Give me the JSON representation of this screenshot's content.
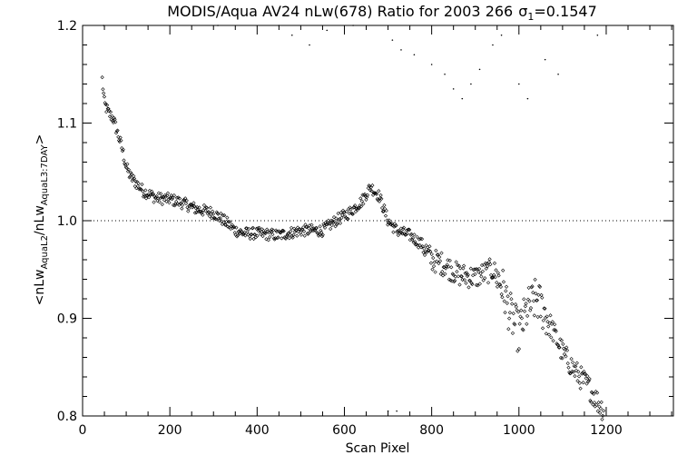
{
  "chart_data": {
    "type": "scatter",
    "title": "MODIS/Aqua AV24 nLw(678) Ratio for 2003 266",
    "title_sigma_label": "σ",
    "title_sigma_sub": "1",
    "title_sigma_value": "=0.1547",
    "xlabel": "Scan Pixel",
    "ylabel": {
      "pre": "<nLw",
      "sub1": "AquaL2",
      "mid": "/nLw",
      "sub2": "AquaL3:7DAY",
      "post": ">"
    },
    "xlim": [
      0,
      1354
    ],
    "ylim": [
      0.8,
      1.2
    ],
    "xticks": [
      0,
      200,
      400,
      600,
      800,
      1000,
      1200
    ],
    "xtick_labels": [
      "0",
      "200",
      "400",
      "600",
      "800",
      "1000",
      "1200"
    ],
    "yticks": [
      0.8,
      0.9,
      1.0,
      1.1,
      1.2
    ],
    "ytick_labels": [
      "0.8",
      "0.9",
      "1.0",
      "1.1",
      "1.2"
    ],
    "reference_line": 1.0,
    "grid": false,
    "trend_points": [
      [
        45,
        1.145
      ],
      [
        50,
        1.12
      ],
      [
        60,
        1.11
      ],
      [
        70,
        1.105
      ],
      [
        80,
        1.09
      ],
      [
        90,
        1.075
      ],
      [
        100,
        1.055
      ],
      [
        110,
        1.045
      ],
      [
        120,
        1.04
      ],
      [
        130,
        1.035
      ],
      [
        140,
        1.03
      ],
      [
        150,
        1.028
      ],
      [
        170,
        1.023
      ],
      [
        200,
        1.022
      ],
      [
        230,
        1.018
      ],
      [
        260,
        1.012
      ],
      [
        300,
        1.008
      ],
      [
        330,
        0.998
      ],
      [
        350,
        0.99
      ],
      [
        370,
        0.987
      ],
      [
        400,
        0.987
      ],
      [
        450,
        0.985
      ],
      [
        500,
        0.99
      ],
      [
        520,
        0.99
      ],
      [
        550,
        0.99
      ],
      [
        580,
        1.0
      ],
      [
        610,
        1.008
      ],
      [
        640,
        1.02
      ],
      [
        660,
        1.035
      ],
      [
        680,
        1.025
      ],
      [
        700,
        1.0
      ],
      [
        720,
        0.99
      ],
      [
        750,
        0.985
      ],
      [
        780,
        0.975
      ],
      [
        800,
        0.96
      ],
      [
        830,
        0.955
      ],
      [
        860,
        0.945
      ],
      [
        900,
        0.942
      ],
      [
        940,
        0.95
      ],
      [
        960,
        0.935
      ],
      [
        980,
        0.905
      ],
      [
        1000,
        0.885
      ],
      [
        1020,
        0.91
      ],
      [
        1040,
        0.92
      ],
      [
        1060,
        0.905
      ],
      [
        1080,
        0.885
      ],
      [
        1100,
        0.865
      ],
      [
        1130,
        0.845
      ],
      [
        1160,
        0.83
      ],
      [
        1180,
        0.815
      ],
      [
        1195,
        0.805
      ]
    ],
    "outlier_points": [
      [
        48,
        1.2
      ],
      [
        310,
        1.2
      ],
      [
        450,
        1.2
      ],
      [
        480,
        1.19
      ],
      [
        520,
        1.18
      ],
      [
        560,
        1.195
      ],
      [
        620,
        1.2
      ],
      [
        710,
        1.185
      ],
      [
        730,
        1.175
      ],
      [
        760,
        1.17
      ],
      [
        800,
        1.16
      ],
      [
        830,
        1.15
      ],
      [
        850,
        1.135
      ],
      [
        870,
        1.125
      ],
      [
        890,
        1.14
      ],
      [
        910,
        1.155
      ],
      [
        940,
        1.18
      ],
      [
        960,
        1.19
      ],
      [
        1000,
        1.14
      ],
      [
        1020,
        1.125
      ],
      [
        1060,
        1.165
      ],
      [
        1090,
        1.15
      ],
      [
        1150,
        1.2
      ],
      [
        1180,
        1.19
      ],
      [
        700,
        0.805
      ],
      [
        720,
        0.805
      ],
      [
        500,
        0.8
      ]
    ]
  }
}
